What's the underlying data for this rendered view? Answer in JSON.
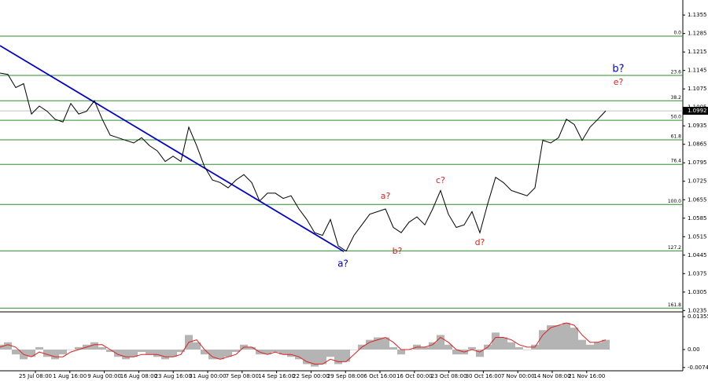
{
  "chart_data": {
    "type": "line",
    "price": {
      "name": "EURUSD",
      "color": "#000000",
      "values": [
        1.1135,
        1.113,
        1.108,
        1.1095,
        1.098,
        1.101,
        1.099,
        1.096,
        1.095,
        1.102,
        1.098,
        1.099,
        1.103,
        1.096,
        1.09,
        1.089,
        1.088,
        1.087,
        1.089,
        1.086,
        1.084,
        1.08,
        1.082,
        1.08,
        1.093,
        1.086,
        1.078,
        1.073,
        1.072,
        1.07,
        1.073,
        1.075,
        1.072,
        1.065,
        1.068,
        1.068,
        1.066,
        1.067,
        1.062,
        1.058,
        1.053,
        1.052,
        1.058,
        1.048,
        1.046,
        1.052,
        1.056,
        1.06,
        1.061,
        1.062,
        1.055,
        1.053,
        1.057,
        1.059,
        1.056,
        1.062,
        1.069,
        1.06,
        1.055,
        1.056,
        1.061,
        1.053,
        1.064,
        1.074,
        1.072,
        1.069,
        1.068,
        1.067,
        1.07,
        1.088,
        1.087,
        1.089,
        1.096,
        1.094,
        1.088,
        1.093,
        1.096,
        1.0992
      ]
    },
    "ylim": [
      1.023,
      1.1412
    ],
    "yticks": [
      1.1355,
      1.1285,
      1.1215,
      1.1145,
      1.1075,
      1.1005,
      1.0935,
      1.0865,
      1.0795,
      1.0725,
      1.0655,
      1.0585,
      1.0515,
      1.0445,
      1.0375,
      1.0305,
      1.0235
    ],
    "last_price": 1.0992,
    "categories": [
      "25 Jul 08:00",
      "1 Aug 16:00",
      "9 Aug 00:00",
      "16 Aug 08:00",
      "23 Aug 16:00",
      "31 Aug 00:00",
      "7 Sep 08:00",
      "14 Sep 16:00",
      "22 Sep 00:00",
      "29 Sep 08:00",
      "6 Oct 16:00",
      "16 Oct 00:00",
      "23 Oct 08:00",
      "30 Oct 16:00",
      "7 Nov 00:00",
      "14 Nov 08:00",
      "21 Nov 16:00"
    ],
    "fib_color": "#2e8b2e",
    "fib_levels": [
      {
        "label": "0.0",
        "value": 1.1275
      },
      {
        "label": "23.6",
        "value": 1.1126
      },
      {
        "label": "38.2",
        "value": 1.103
      },
      {
        "label": "50.0",
        "value": 1.0956
      },
      {
        "label": "61.8",
        "value": 1.0882
      },
      {
        "label": "76.4",
        "value": 1.0789
      },
      {
        "label": "100.0",
        "value": 1.0637
      },
      {
        "label": "127.2",
        "value": 1.0461
      },
      {
        "label": "161.8",
        "value": 1.0244
      }
    ],
    "trend_line": {
      "color": "#0000cc",
      "values": [
        1.1239,
        1.0459
      ]
    },
    "annotations": [
      {
        "text": "a?",
        "color": "#0000cc"
      },
      {
        "text": "b?",
        "color": "#0000cc"
      },
      {
        "text": "e?",
        "color": "#dd2222"
      },
      {
        "text": "a?",
        "color": "#dd2222"
      },
      {
        "text": "b?",
        "color": "#dd2222"
      },
      {
        "text": "c?",
        "color": "#dd2222"
      },
      {
        "text": "d?",
        "color": "#dd2222"
      }
    ],
    "oscillator": {
      "histogram_color": "#b4b4b4",
      "signal_color": "#e02020",
      "values": [
        0.002,
        0.003,
        -0.002,
        -0.004,
        -0.003,
        0.001,
        -0.003,
        -0.004,
        -0.002,
        0.0,
        0.001,
        0.002,
        0.003,
        0.001,
        -0.001,
        -0.003,
        -0.004,
        -0.003,
        -0.001,
        -0.002,
        -0.003,
        -0.004,
        -0.003,
        -0.001,
        0.006,
        0.003,
        -0.002,
        -0.004,
        -0.004,
        -0.003,
        -0.001,
        0.002,
        0.001,
        -0.002,
        -0.002,
        -0.001,
        -0.002,
        -0.003,
        -0.004,
        -0.006,
        -0.007,
        -0.006,
        -0.003,
        -0.006,
        -0.005,
        0.0,
        0.002,
        0.004,
        0.005,
        0.005,
        0.001,
        -0.002,
        0.0,
        0.002,
        0.001,
        0.003,
        0.006,
        0.002,
        -0.002,
        -0.002,
        0.001,
        -0.003,
        0.002,
        0.007,
        0.005,
        0.003,
        0.001,
        0.0,
        0.002,
        0.008,
        0.01,
        0.01,
        0.011,
        0.009,
        0.004,
        0.002,
        0.003,
        0.004
      ],
      "signal": [
        0.001,
        0.002,
        0.001,
        -0.002,
        -0.003,
        -0.001,
        -0.002,
        -0.003,
        -0.003,
        -0.001,
        0.0,
        0.001,
        0.002,
        0.002,
        0.0,
        -0.002,
        -0.003,
        -0.003,
        -0.002,
        -0.002,
        -0.002,
        -0.003,
        -0.003,
        -0.002,
        0.003,
        0.004,
        0.0,
        -0.003,
        -0.004,
        -0.003,
        -0.002,
        0.001,
        0.001,
        -0.001,
        -0.002,
        -0.001,
        -0.002,
        -0.002,
        -0.003,
        -0.005,
        -0.006,
        -0.006,
        -0.004,
        -0.005,
        -0.005,
        -0.002,
        0.001,
        0.003,
        0.004,
        0.005,
        0.003,
        0.0,
        0.0,
        0.001,
        0.001,
        0.002,
        0.005,
        0.003,
        0.0,
        -0.001,
        0.0,
        -0.001,
        0.001,
        0.005,
        0.005,
        0.004,
        0.002,
        0.001,
        0.001,
        0.006,
        0.009,
        0.01,
        0.011,
        0.01,
        0.006,
        0.003,
        0.003,
        0.004
      ],
      "ylim": [
        -0.0081,
        0.0152
      ],
      "yticks": [
        0.01355,
        {
          "value": 0,
          "label": "0.00"
        },
        -0.0074
      ]
    }
  }
}
